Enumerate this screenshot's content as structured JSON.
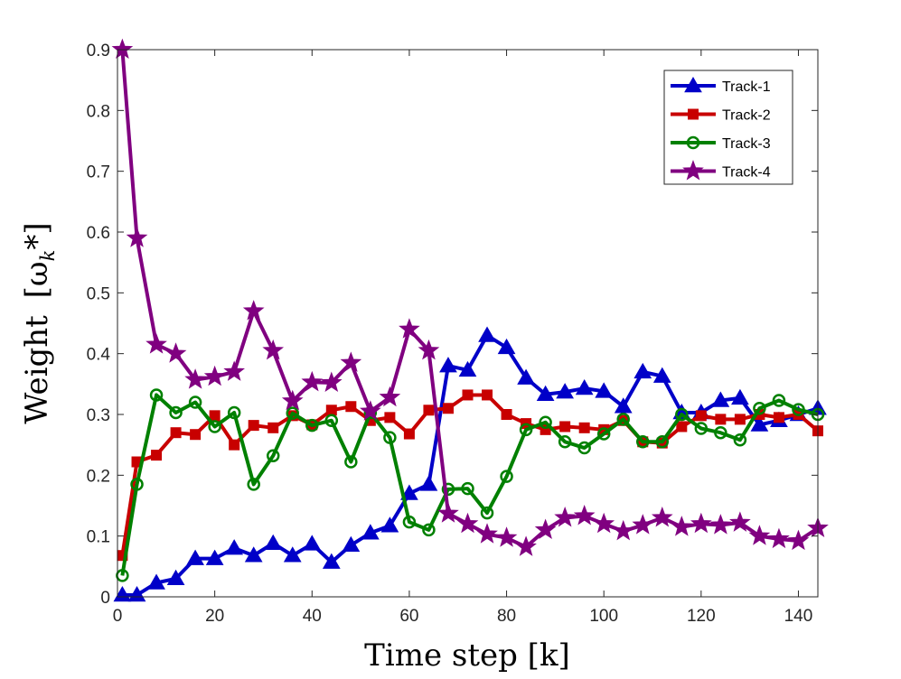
{
  "chart_data": {
    "type": "line",
    "title": "",
    "xlabel": "Time step [k]",
    "ylabel": "Weight [ωₖ*]",
    "ylabel_text": "Weight",
    "ylabel_math": "[ω",
    "ylabel_sub": "k",
    "ylabel_tail": "*]",
    "xlim": [
      0,
      144
    ],
    "ylim": [
      0,
      0.9
    ],
    "xticks": [
      0,
      20,
      40,
      60,
      80,
      100,
      120,
      140
    ],
    "yticks": [
      0,
      0.1,
      0.2,
      0.3,
      0.4,
      0.5,
      0.6,
      0.7,
      0.8,
      0.9
    ],
    "xtick_labels": [
      "0",
      "20",
      "40",
      "60",
      "80",
      "100",
      "120",
      "140"
    ],
    "ytick_labels": [
      "0",
      "0.1",
      "0.2",
      "0.3",
      "0.4",
      "0.5",
      "0.6",
      "0.7",
      "0.8",
      "0.9"
    ],
    "grid": false,
    "legend_position": "top-right",
    "x": [
      1,
      4,
      8,
      12,
      16,
      20,
      24,
      28,
      32,
      36,
      40,
      44,
      48,
      52,
      56,
      60,
      64,
      68,
      72,
      76,
      80,
      84,
      88,
      92,
      96,
      100,
      104,
      108,
      112,
      116,
      120,
      124,
      128,
      132,
      136,
      140,
      144
    ],
    "series": [
      {
        "name": "Track-1",
        "color": "#0000c8",
        "marker": "triangle",
        "values": [
          0.003,
          0.003,
          0.023,
          0.03,
          0.063,
          0.063,
          0.08,
          0.068,
          0.088,
          0.068,
          0.087,
          0.057,
          0.085,
          0.105,
          0.117,
          0.17,
          0.185,
          0.38,
          0.373,
          0.43,
          0.41,
          0.36,
          0.333,
          0.337,
          0.343,
          0.338,
          0.313,
          0.37,
          0.363,
          0.303,
          0.303,
          0.323,
          0.327,
          0.283,
          0.29,
          0.3,
          0.31
        ]
      },
      {
        "name": "Track-2",
        "color": "#c80000",
        "marker": "square",
        "values": [
          0.068,
          0.222,
          0.233,
          0.27,
          0.267,
          0.298,
          0.25,
          0.282,
          0.278,
          0.298,
          0.283,
          0.307,
          0.313,
          0.29,
          0.295,
          0.268,
          0.307,
          0.31,
          0.332,
          0.332,
          0.3,
          0.285,
          0.275,
          0.28,
          0.278,
          0.275,
          0.29,
          0.255,
          0.253,
          0.28,
          0.298,
          0.292,
          0.292,
          0.3,
          0.295,
          0.3,
          0.273
        ]
      },
      {
        "name": "Track-3",
        "color": "#008000",
        "marker": "circle",
        "values": [
          0.035,
          0.185,
          0.332,
          0.303,
          0.32,
          0.28,
          0.303,
          0.185,
          0.232,
          0.302,
          0.282,
          0.29,
          0.222,
          0.303,
          0.262,
          0.123,
          0.11,
          0.177,
          0.178,
          0.138,
          0.198,
          0.275,
          0.287,
          0.255,
          0.245,
          0.268,
          0.292,
          0.255,
          0.255,
          0.3,
          0.277,
          0.27,
          0.258,
          0.31,
          0.323,
          0.308,
          0.3
        ]
      },
      {
        "name": "Track-4",
        "color": "#800080",
        "marker": "star",
        "values": [
          0.9,
          0.59,
          0.415,
          0.4,
          0.357,
          0.362,
          0.37,
          0.47,
          0.405,
          0.322,
          0.353,
          0.352,
          0.385,
          0.305,
          0.328,
          0.44,
          0.405,
          0.137,
          0.12,
          0.103,
          0.097,
          0.082,
          0.11,
          0.13,
          0.133,
          0.12,
          0.108,
          0.118,
          0.13,
          0.115,
          0.12,
          0.118,
          0.122,
          0.1,
          0.095,
          0.092,
          0.113
        ]
      }
    ]
  }
}
